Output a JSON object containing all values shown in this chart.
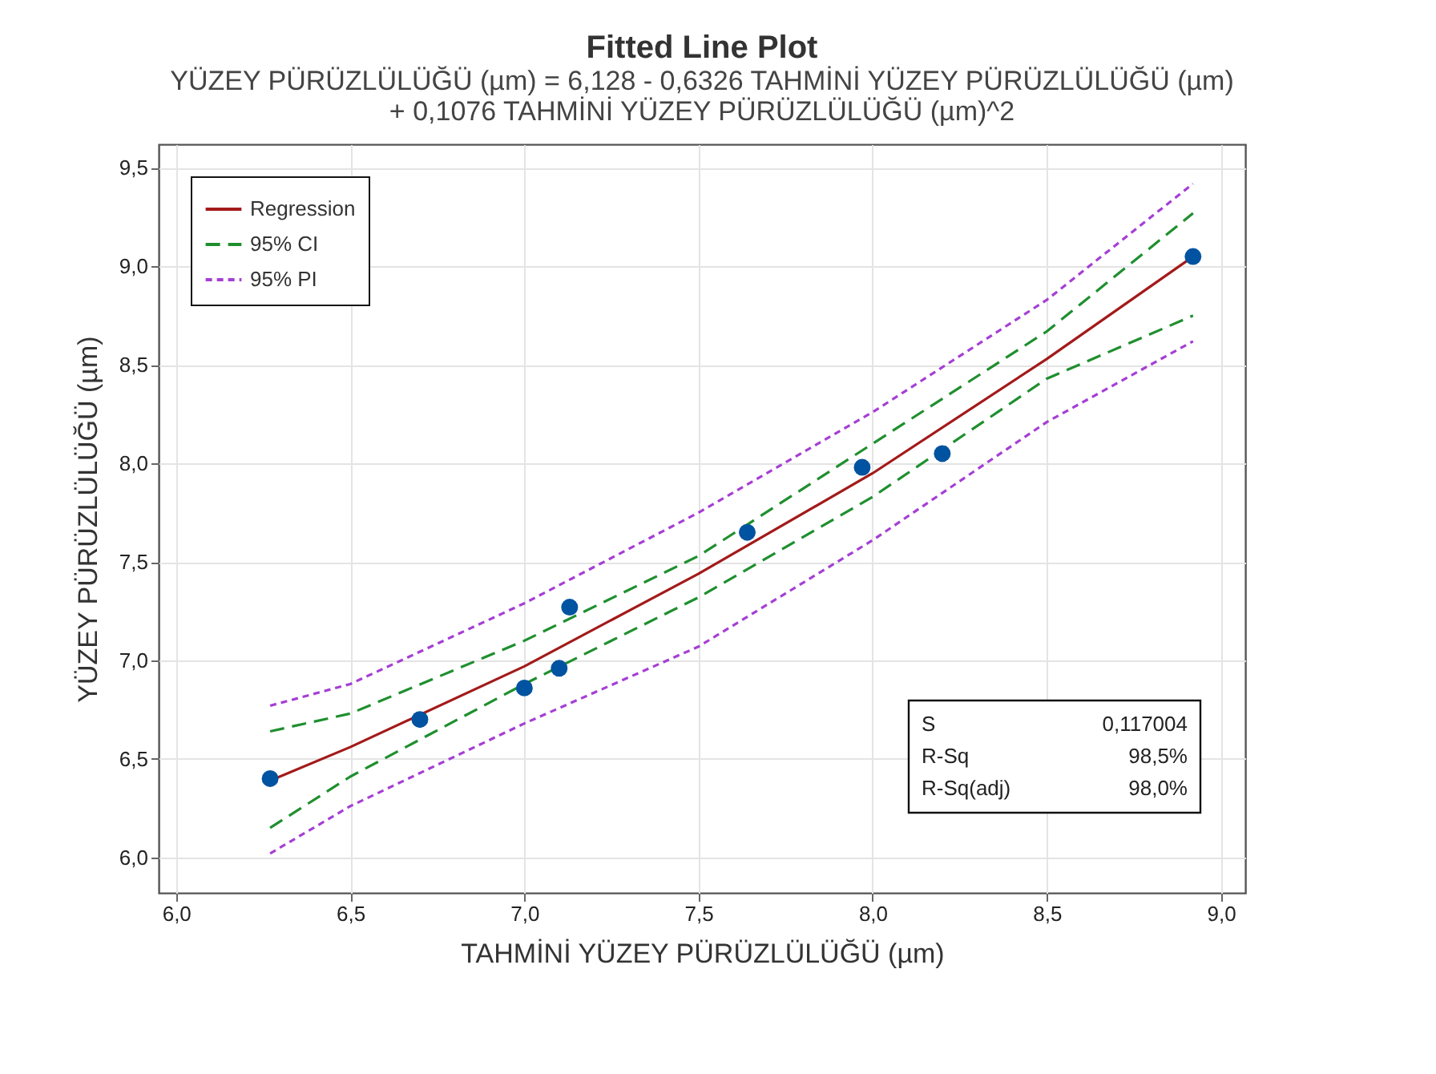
{
  "chart_data": {
    "type": "scatter",
    "title": "Fitted Line Plot",
    "subtitle": "YÜZEY PÜRÜZLÜLÜĞÜ (µm) = 6,128 - 0,6326 TAHMİNİ YÜZEY PÜRÜZLÜLÜĞÜ (µm)\n+ 0,1076 TAHMİNİ YÜZEY PÜRÜZLÜLÜĞÜ (µm)^2",
    "xlabel": "TAHMİNİ YÜZEY PÜRÜZLÜLÜĞÜ (µm)",
    "ylabel": "YÜZEY PÜRÜZLÜLÜĞÜ (µm)",
    "xlim": [
      5.95,
      9.07
    ],
    "ylim": [
      5.82,
      9.62
    ],
    "xticks": [
      {
        "value": 6,
        "label": "6,0"
      },
      {
        "value": 6.5,
        "label": "6,5"
      },
      {
        "value": 7,
        "label": "7,0"
      },
      {
        "value": 7.5,
        "label": "7,5"
      },
      {
        "value": 8,
        "label": "8,0"
      },
      {
        "value": 8.5,
        "label": "8,5"
      },
      {
        "value": 9,
        "label": "9,0"
      }
    ],
    "yticks": [
      {
        "value": 6,
        "label": "6,0"
      },
      {
        "value": 6.5,
        "label": "6,5"
      },
      {
        "value": 7,
        "label": "7,0"
      },
      {
        "value": 7.5,
        "label": "7,5"
      },
      {
        "value": 8,
        "label": "8,0"
      },
      {
        "value": 8.5,
        "label": "8,5"
      },
      {
        "value": 9,
        "label": "9,0"
      },
      {
        "value": 9.5,
        "label": "9,5"
      }
    ],
    "grid": true,
    "legend": "top left",
    "series": [
      {
        "color": "#0053a0",
        "marker": "circle",
        "x": [
          6.27,
          6.7,
          7.0,
          7.1,
          7.13,
          7.64,
          7.97,
          8.2,
          8.92
        ],
        "values": [
          6.4,
          6.7,
          6.86,
          6.96,
          7.27,
          7.65,
          7.98,
          8.05,
          9.05
        ]
      },
      {
        "name": "Regression",
        "type": "line",
        "color": "#a31a1a",
        "line_style": "solid",
        "x": [
          6.27,
          6.5,
          7.0,
          7.5,
          8.0,
          8.5,
          8.92
        ],
        "values": [
          6.39,
          6.56,
          6.97,
          7.44,
          7.95,
          8.53,
          9.05
        ]
      },
      {
        "name": "95% CI",
        "type": "line",
        "color": "#1f8f2f",
        "line_style": "dashed",
        "x": [
          6.27,
          6.5,
          7.0,
          7.5,
          8.0,
          8.5,
          8.92
        ],
        "values": [
          6.64,
          6.73,
          7.1,
          7.53,
          8.1,
          8.67,
          9.27
        ]
      },
      {
        "type": "line",
        "color": "#1f8f2f",
        "line_style": "dashed",
        "x": [
          6.27,
          6.5,
          7.0,
          7.5,
          8.0,
          8.5,
          8.92
        ],
        "values": [
          6.15,
          6.41,
          6.88,
          7.32,
          7.83,
          8.43,
          8.75
        ]
      },
      {
        "name": "95% PI",
        "type": "line",
        "color": "#a53fd4",
        "line_style": "dotted",
        "x": [
          6.27,
          6.5,
          7.0,
          7.5,
          8.0,
          8.5,
          8.92
        ],
        "values": [
          6.77,
          6.88,
          7.29,
          7.75,
          8.26,
          8.83,
          9.42
        ]
      },
      {
        "type": "line",
        "color": "#a53fd4",
        "line_style": "dotted",
        "x": [
          6.27,
          6.5,
          7.0,
          7.5,
          8.0,
          8.5,
          8.92
        ],
        "values": [
          6.02,
          6.26,
          6.68,
          7.07,
          7.61,
          8.21,
          8.62
        ]
      }
    ],
    "annotations": [
      "S",
      "0,117004",
      "R-Sq",
      "98,5%",
      "R-Sq(adj)",
      "98,0%"
    ]
  }
}
